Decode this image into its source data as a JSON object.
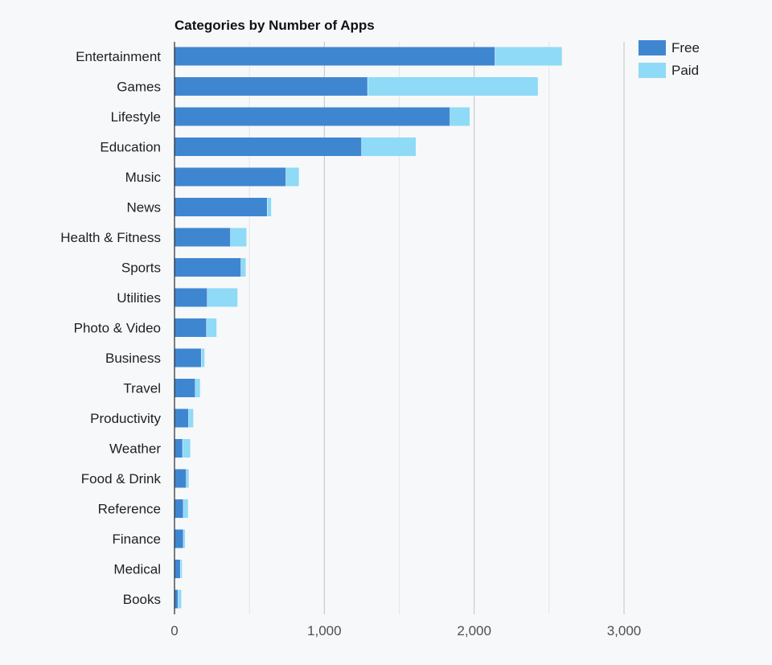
{
  "colors": {
    "background": "#f7f8fa",
    "grid_minor": "#e4e6ea",
    "grid_major": "#bfc3ca",
    "axis": "#2b2b2b",
    "free": "#3f86d1",
    "paid": "#8fdaf7"
  },
  "chart_data": {
    "type": "bar",
    "orientation": "horizontal",
    "stacked": true,
    "title": "Categories by Number of Apps",
    "xlabel": "",
    "ylabel": "",
    "xlim": [
      0,
      3000
    ],
    "x_ticks": [
      0,
      1000,
      2000,
      3000
    ],
    "x_tick_labels": [
      "0",
      "1,000",
      "2,000",
      "3,000"
    ],
    "grid": true,
    "legend_position": "top-right",
    "categories": [
      "Entertainment",
      "Games",
      "Lifestyle",
      "Education",
      "Music",
      "News",
      "Health & Fitness",
      "Sports",
      "Utilities",
      "Photo & Video",
      "Business",
      "Travel",
      "Productivity",
      "Weather",
      "Food & Drink",
      "Reference",
      "Finance",
      "Medical",
      "Books"
    ],
    "series": [
      {
        "name": "Free",
        "color": "#3f86d1",
        "values": [
          2140,
          1290,
          1840,
          1250,
          745,
          620,
          375,
          445,
          220,
          215,
          180,
          140,
          95,
          55,
          80,
          60,
          60,
          40,
          25
        ]
      },
      {
        "name": "Paid",
        "color": "#8fdaf7",
        "values": [
          445,
          1135,
          130,
          360,
          85,
          25,
          105,
          30,
          200,
          65,
          20,
          30,
          30,
          50,
          15,
          30,
          10,
          10,
          20
        ]
      }
    ]
  }
}
